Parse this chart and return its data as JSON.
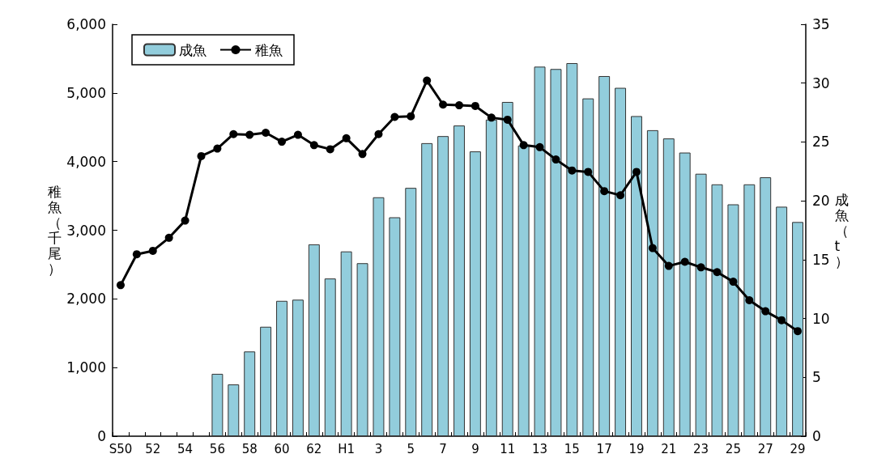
{
  "chart_data": {
    "type": "bar",
    "ylabel": "稚魚（千尾）",
    "y2label": "成魚（t）",
    "categories": [
      "S50",
      null,
      "52",
      null,
      "54",
      null,
      "56",
      null,
      "58",
      null,
      "60",
      null,
      "62",
      null,
      "H1",
      null,
      "3",
      null,
      "5",
      null,
      "7",
      null,
      "9",
      null,
      "11",
      null,
      "13",
      null,
      "15",
      null,
      "17",
      null,
      "19",
      null,
      "21",
      null,
      "23",
      null,
      "25",
      null,
      "27",
      null,
      "29"
    ],
    "series": [
      {
        "name": "成魚",
        "axis": "y2",
        "color": "#92cddc",
        "values": [
          null,
          null,
          null,
          null,
          null,
          null,
          5.3,
          4.4,
          7.2,
          9.3,
          11.5,
          11.6,
          16.3,
          13.4,
          15.7,
          14.7,
          20.3,
          18.6,
          21.1,
          24.9,
          25.5,
          26.4,
          24.2,
          26.9,
          28.4,
          24.7,
          31.4,
          31.2,
          31.7,
          28.7,
          30.6,
          29.6,
          27.2,
          26.0,
          25.3,
          24.1,
          22.3,
          21.4,
          19.7,
          21.4,
          22.0,
          19.5,
          18.2
        ]
      },
      {
        "name": "稚魚",
        "type": "line",
        "color": "#000000",
        "marker": "circle",
        "values": [
          2200,
          2650,
          2700,
          2890,
          3140,
          4080,
          4190,
          4400,
          4390,
          4420,
          4290,
          4390,
          4240,
          4180,
          4340,
          4110,
          4400,
          4650,
          4660,
          5180,
          4830,
          4820,
          4810,
          4640,
          4610,
          4240,
          4210,
          4030,
          3870,
          3850,
          3570,
          3510,
          3850,
          2740,
          2480,
          2540,
          2460,
          2390,
          2250,
          1980,
          1820,
          1690,
          1530
        ]
      }
    ],
    "ylim": [
      0,
      6000
    ],
    "yticks": [
      0,
      {
        "value": 1000,
        "label": "1,000"
      },
      {
        "value": 2000,
        "label": "2,000"
      },
      {
        "value": 3000,
        "label": "3,000"
      },
      {
        "value": 4000,
        "label": "4,000"
      },
      {
        "value": 5000,
        "label": "5,000"
      },
      {
        "value": 6000,
        "label": "6,000"
      }
    ],
    "y2lim": [
      0,
      35
    ],
    "y2ticks": [
      0,
      5,
      10,
      15,
      20,
      25,
      30,
      35
    ],
    "grid": false,
    "legend": "top left"
  }
}
